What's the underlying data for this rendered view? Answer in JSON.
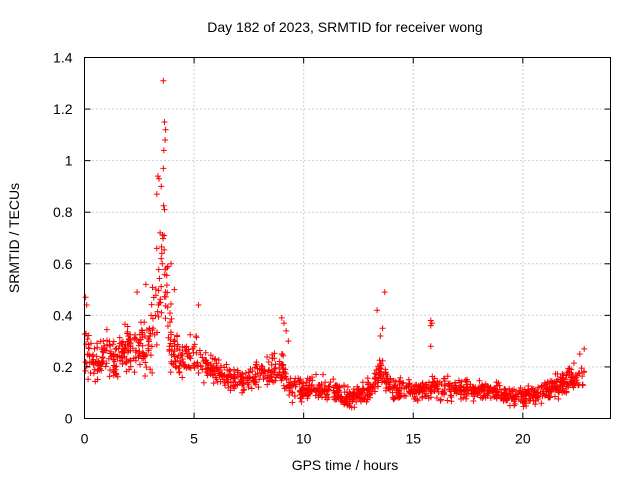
{
  "chart_data": {
    "type": "scatter",
    "title": "Day 182 of 2023, SRMTID for receiver wong",
    "xlabel": "GPS time / hours",
    "ylabel": "SRMTID / TECUs",
    "xlim": [
      0,
      24
    ],
    "ylim": [
      0,
      1.4
    ],
    "xticks": [
      0,
      5,
      10,
      15,
      20
    ],
    "xtick_labels": [
      "0",
      "5",
      "10",
      "15",
      "20"
    ],
    "yticks": [
      0,
      0.2,
      0.4,
      0.6,
      0.8,
      1.0,
      1.2,
      1.4
    ],
    "ytick_labels": [
      "0",
      "0.2",
      "0.4",
      "0.6",
      "0.8",
      "1",
      "1.2",
      "1.4"
    ],
    "grid": true,
    "marker": "+",
    "color": "#ff0000",
    "series": [
      {
        "name": "SRMTID",
        "profile_description_hours_vs_level": "approximate envelope of point cloud",
        "profile": [
          {
            "x": 0.0,
            "level": 0.27,
            "spread": 0.09
          },
          {
            "x": 0.5,
            "level": 0.22,
            "spread": 0.07
          },
          {
            "x": 1.0,
            "level": 0.25,
            "spread": 0.08
          },
          {
            "x": 1.5,
            "level": 0.22,
            "spread": 0.08
          },
          {
            "x": 2.0,
            "level": 0.28,
            "spread": 0.09
          },
          {
            "x": 2.5,
            "level": 0.27,
            "spread": 0.09
          },
          {
            "x": 3.0,
            "level": 0.3,
            "spread": 0.12
          },
          {
            "x": 3.3,
            "level": 0.45,
            "spread": 0.2
          },
          {
            "x": 3.6,
            "level": 0.55,
            "spread": 0.25
          },
          {
            "x": 4.0,
            "level": 0.28,
            "spread": 0.1
          },
          {
            "x": 4.5,
            "level": 0.22,
            "spread": 0.07
          },
          {
            "x": 5.0,
            "level": 0.25,
            "spread": 0.07
          },
          {
            "x": 5.5,
            "level": 0.2,
            "spread": 0.05
          },
          {
            "x": 6.0,
            "level": 0.17,
            "spread": 0.05
          },
          {
            "x": 7.0,
            "level": 0.15,
            "spread": 0.05
          },
          {
            "x": 8.0,
            "level": 0.16,
            "spread": 0.05
          },
          {
            "x": 9.0,
            "level": 0.2,
            "spread": 0.07
          },
          {
            "x": 9.3,
            "level": 0.12,
            "spread": 0.04
          },
          {
            "x": 10.0,
            "level": 0.11,
            "spread": 0.04
          },
          {
            "x": 11.0,
            "level": 0.12,
            "spread": 0.04
          },
          {
            "x": 12.0,
            "level": 0.08,
            "spread": 0.03
          },
          {
            "x": 13.0,
            "level": 0.11,
            "spread": 0.04
          },
          {
            "x": 13.5,
            "level": 0.18,
            "spread": 0.05
          },
          {
            "x": 14.0,
            "level": 0.11,
            "spread": 0.04
          },
          {
            "x": 15.0,
            "level": 0.11,
            "spread": 0.04
          },
          {
            "x": 16.0,
            "level": 0.12,
            "spread": 0.04
          },
          {
            "x": 17.0,
            "level": 0.11,
            "spread": 0.04
          },
          {
            "x": 18.0,
            "level": 0.11,
            "spread": 0.03
          },
          {
            "x": 19.0,
            "level": 0.1,
            "spread": 0.03
          },
          {
            "x": 20.0,
            "level": 0.08,
            "spread": 0.03
          },
          {
            "x": 21.0,
            "level": 0.11,
            "spread": 0.04
          },
          {
            "x": 22.0,
            "level": 0.14,
            "spread": 0.05
          },
          {
            "x": 22.8,
            "level": 0.16,
            "spread": 0.05
          }
        ],
        "notable_points": [
          {
            "x": 3.6,
            "y": 1.31
          },
          {
            "x": 3.65,
            "y": 1.15
          },
          {
            "x": 3.7,
            "y": 1.12
          },
          {
            "x": 3.68,
            "y": 1.08
          },
          {
            "x": 3.62,
            "y": 1.04
          },
          {
            "x": 3.6,
            "y": 0.97
          },
          {
            "x": 3.35,
            "y": 0.94
          },
          {
            "x": 3.4,
            "y": 0.93
          },
          {
            "x": 3.5,
            "y": 0.9
          },
          {
            "x": 3.3,
            "y": 0.87
          },
          {
            "x": 3.65,
            "y": 0.81
          },
          {
            "x": 3.45,
            "y": 0.72
          },
          {
            "x": 3.3,
            "y": 0.66
          },
          {
            "x": 3.5,
            "y": 0.62
          },
          {
            "x": 3.55,
            "y": 0.6
          },
          {
            "x": 3.95,
            "y": 0.6
          },
          {
            "x": 3.8,
            "y": 0.59
          },
          {
            "x": 13.7,
            "y": 0.49
          },
          {
            "x": 13.35,
            "y": 0.42
          },
          {
            "x": 13.6,
            "y": 0.35
          },
          {
            "x": 13.5,
            "y": 0.32
          },
          {
            "x": 15.8,
            "y": 0.38
          },
          {
            "x": 15.85,
            "y": 0.37
          },
          {
            "x": 15.8,
            "y": 0.36
          },
          {
            "x": 15.8,
            "y": 0.28
          },
          {
            "x": 9.0,
            "y": 0.39
          },
          {
            "x": 9.1,
            "y": 0.37
          },
          {
            "x": 9.2,
            "y": 0.34
          },
          {
            "x": 9.3,
            "y": 0.3
          },
          {
            "x": 0.05,
            "y": 0.47
          },
          {
            "x": 0.1,
            "y": 0.44
          },
          {
            "x": 2.4,
            "y": 0.49
          },
          {
            "x": 2.8,
            "y": 0.52
          },
          {
            "x": 4.1,
            "y": 0.5
          },
          {
            "x": 5.2,
            "y": 0.44
          },
          {
            "x": 22.8,
            "y": 0.27
          },
          {
            "x": 22.6,
            "y": 0.25
          }
        ]
      }
    ]
  }
}
